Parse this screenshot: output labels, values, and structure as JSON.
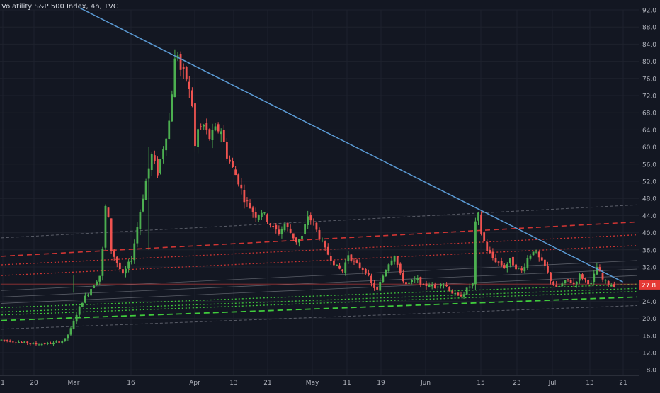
{
  "header": {
    "symbol_title": "Volatility S&P 500 Index, 4h, TVC"
  },
  "colors": {
    "background": "#131722",
    "up": "#26a69a",
    "up_bright": "#4caf50",
    "down": "#ef5350",
    "trendline": "#5b9bd5",
    "red_level": "#e53935",
    "green_level": "#43d63e",
    "channel": "#787b86",
    "price_tag": "#e53935"
  },
  "chart_data": {
    "type": "candlestick",
    "title": "Volatility S&P 500 Index, 4h, TVC",
    "y_axis": {
      "ticks": [
        "92.0",
        "88.0",
        "84.0",
        "80.0",
        "76.0",
        "72.0",
        "68.0",
        "64.0",
        "60.0",
        "56.0",
        "52.0",
        "48.0",
        "44.0",
        "40.0",
        "36.0",
        "32.0",
        "28.0",
        "24.0",
        "20.0",
        "16.0",
        "12.0",
        "8.0"
      ],
      "ylim": [
        6.0,
        94.0
      ]
    },
    "x_axis": {
      "ticks": [
        "1",
        "20",
        "Mar",
        "16",
        "Apr",
        "13",
        "21",
        "May",
        "11",
        "19",
        "Jun",
        "15",
        "23",
        "Jul",
        "13",
        "21"
      ]
    },
    "last_price": "27.8",
    "price_path": [
      [
        0,
        15
      ],
      [
        6,
        14.5
      ],
      [
        12,
        14
      ],
      [
        18,
        14.2
      ],
      [
        22,
        15
      ],
      [
        24,
        17.5
      ],
      [
        26,
        21
      ],
      [
        28,
        24
      ],
      [
        30,
        26
      ],
      [
        32,
        28
      ],
      [
        34,
        30
      ],
      [
        35,
        36
      ],
      [
        36,
        46
      ],
      [
        37,
        43
      ],
      [
        38,
        36
      ],
      [
        40,
        33
      ],
      [
        42,
        30
      ],
      [
        45,
        34
      ],
      [
        48,
        45
      ],
      [
        50,
        52
      ],
      [
        52,
        58
      ],
      [
        54,
        54
      ],
      [
        56,
        60
      ],
      [
        58,
        66
      ],
      [
        60,
        80
      ],
      [
        61,
        82
      ],
      [
        62,
        78
      ],
      [
        64,
        76
      ],
      [
        66,
        70
      ],
      [
        67,
        60
      ],
      [
        68,
        64
      ],
      [
        70,
        65
      ],
      [
        72,
        62
      ],
      [
        74,
        64
      ],
      [
        76,
        64
      ],
      [
        78,
        58
      ],
      [
        80,
        55
      ],
      [
        82,
        52
      ],
      [
        84,
        48
      ],
      [
        86,
        46
      ],
      [
        88,
        44
      ],
      [
        90,
        45
      ],
      [
        92,
        43
      ],
      [
        94,
        41
      ],
      [
        96,
        40
      ],
      [
        98,
        42
      ],
      [
        100,
        40
      ],
      [
        102,
        38
      ],
      [
        104,
        39
      ],
      [
        106,
        44
      ],
      [
        108,
        42
      ],
      [
        110,
        39
      ],
      [
        112,
        36
      ],
      [
        114,
        34
      ],
      [
        116,
        32
      ],
      [
        118,
        31
      ],
      [
        120,
        35
      ],
      [
        122,
        33
      ],
      [
        124,
        32
      ],
      [
        126,
        31
      ],
      [
        128,
        28
      ],
      [
        130,
        26.5
      ],
      [
        132,
        30
      ],
      [
        134,
        33
      ],
      [
        136,
        35
      ],
      [
        138,
        30
      ],
      [
        140,
        28
      ],
      [
        142,
        28.5
      ],
      [
        144,
        29
      ],
      [
        146,
        27.5
      ],
      [
        148,
        28
      ],
      [
        150,
        27
      ],
      [
        152,
        28.5
      ],
      [
        154,
        27.5
      ],
      [
        156,
        26
      ],
      [
        158,
        25
      ],
      [
        160,
        26
      ],
      [
        162,
        27.5
      ],
      [
        163,
        28
      ],
      [
        164,
        42
      ],
      [
        165,
        44
      ],
      [
        166,
        40
      ],
      [
        168,
        36
      ],
      [
        170,
        34
      ],
      [
        172,
        33
      ],
      [
        174,
        32
      ],
      [
        176,
        33.5
      ],
      [
        178,
        32
      ],
      [
        180,
        31
      ],
      [
        182,
        34
      ],
      [
        184,
        36
      ],
      [
        186,
        34
      ],
      [
        188,
        32
      ],
      [
        190,
        29
      ],
      [
        192,
        27
      ],
      [
        194,
        28
      ],
      [
        196,
        29
      ],
      [
        198,
        28
      ],
      [
        200,
        30
      ],
      [
        202,
        29
      ],
      [
        204,
        28
      ],
      [
        206,
        32
      ],
      [
        208,
        29
      ],
      [
        210,
        28
      ],
      [
        212,
        27.8
      ]
    ],
    "lines": [
      {
        "kind": "trendline",
        "from": [
          27,
          92.5
        ],
        "to": [
          215,
          28.5
        ]
      },
      {
        "kind": "red-dashed",
        "from": [
          0,
          34.5
        ],
        "to": [
          220,
          42.5
        ]
      },
      {
        "kind": "red-dotted",
        "from": [
          0,
          32.5
        ],
        "to": [
          220,
          39.5
        ]
      },
      {
        "kind": "red-dotted",
        "from": [
          0,
          30.0
        ],
        "to": [
          220,
          37.0
        ]
      },
      {
        "kind": "green-dotted",
        "from": [
          0,
          22.5
        ],
        "to": [
          220,
          28.0
        ]
      },
      {
        "kind": "green-dotted",
        "from": [
          0,
          21.5
        ],
        "to": [
          220,
          27.0
        ]
      },
      {
        "kind": "green-dotted",
        "from": [
          0,
          20.8
        ],
        "to": [
          220,
          26.3
        ]
      },
      {
        "kind": "green-dashed",
        "from": [
          0,
          19.5
        ],
        "to": [
          220,
          25.0
        ]
      },
      {
        "kind": "grey-dashed",
        "from": [
          0,
          38.8
        ],
        "to": [
          220,
          46.5
        ]
      },
      {
        "kind": "grey-dashed",
        "from": [
          0,
          17.5
        ],
        "to": [
          220,
          23.0
        ]
      },
      {
        "kind": "grey-solid",
        "from": [
          0,
          26.5
        ],
        "to": [
          220,
          33.5
        ]
      },
      {
        "kind": "grey-solid",
        "from": [
          0,
          25.0
        ],
        "to": [
          220,
          31.5
        ]
      },
      {
        "kind": "grey-solid",
        "from": [
          0,
          23.5
        ],
        "to": [
          220,
          30.0
        ]
      },
      {
        "kind": "red-solid-flat",
        "from": [
          0,
          28.0
        ],
        "to": [
          220,
          28.0
        ]
      }
    ]
  }
}
